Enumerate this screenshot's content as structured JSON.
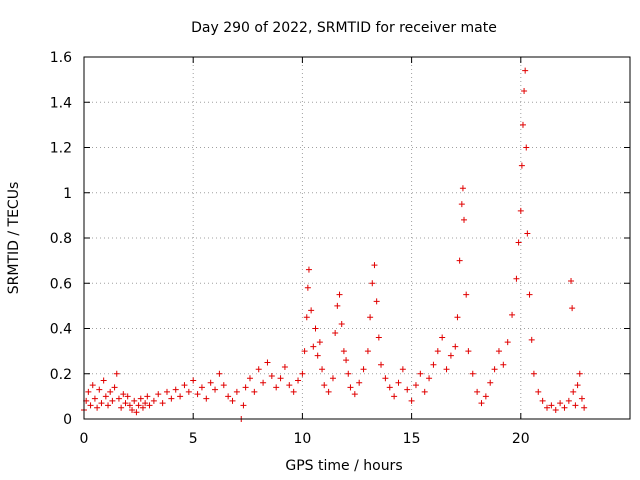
{
  "chart_data": {
    "type": "scatter",
    "title": "Day 290 of 2022, SRMTID for receiver mate",
    "xlabel": "GPS time / hours",
    "ylabel": "SRMTID / TECUs",
    "xlim": [
      0,
      25
    ],
    "ylim": [
      0,
      1.6
    ],
    "x_ticks": [
      0,
      5,
      10,
      15,
      20
    ],
    "x_tick_labels": [
      "0",
      "5",
      "10",
      "15",
      "20"
    ],
    "y_ticks": [
      0,
      0.2,
      0.4,
      0.6,
      0.8,
      1,
      1.2,
      1.4,
      1.6
    ],
    "y_tick_labels": [
      "0",
      "0.2",
      "0.4",
      "0.6",
      "0.8",
      "1",
      "1.2",
      "1.4",
      "1.6"
    ],
    "grid": true,
    "marker": "+",
    "color": "#e00000",
    "series": [
      {
        "name": "SRMTID",
        "points": [
          [
            0.0,
            0.04
          ],
          [
            0.1,
            0.08
          ],
          [
            0.2,
            0.12
          ],
          [
            0.3,
            0.06
          ],
          [
            0.4,
            0.15
          ],
          [
            0.5,
            0.09
          ],
          [
            0.6,
            0.05
          ],
          [
            0.7,
            0.13
          ],
          [
            0.8,
            0.07
          ],
          [
            0.9,
            0.17
          ],
          [
            1.0,
            0.1
          ],
          [
            1.1,
            0.06
          ],
          [
            1.2,
            0.12
          ],
          [
            1.3,
            0.08
          ],
          [
            1.4,
            0.14
          ],
          [
            1.5,
            0.2
          ],
          [
            1.6,
            0.09
          ],
          [
            1.7,
            0.05
          ],
          [
            1.8,
            0.11
          ],
          [
            1.9,
            0.07
          ],
          [
            2.0,
            0.1
          ],
          [
            2.1,
            0.06
          ],
          [
            2.2,
            0.04
          ],
          [
            2.3,
            0.08
          ],
          [
            2.4,
            0.03
          ],
          [
            2.5,
            0.06
          ],
          [
            2.6,
            0.09
          ],
          [
            2.7,
            0.05
          ],
          [
            2.8,
            0.07
          ],
          [
            2.9,
            0.1
          ],
          [
            3.0,
            0.06
          ],
          [
            3.2,
            0.08
          ],
          [
            3.4,
            0.11
          ],
          [
            3.6,
            0.07
          ],
          [
            3.8,
            0.12
          ],
          [
            4.0,
            0.09
          ],
          [
            4.2,
            0.13
          ],
          [
            4.4,
            0.1
          ],
          [
            4.6,
            0.15
          ],
          [
            4.8,
            0.12
          ],
          [
            5.0,
            0.17
          ],
          [
            5.2,
            0.11
          ],
          [
            5.4,
            0.14
          ],
          [
            5.6,
            0.09
          ],
          [
            5.8,
            0.16
          ],
          [
            6.0,
            0.13
          ],
          [
            6.2,
            0.2
          ],
          [
            6.4,
            0.15
          ],
          [
            6.6,
            0.1
          ],
          [
            6.8,
            0.08
          ],
          [
            7.0,
            0.12
          ],
          [
            7.2,
            0.0
          ],
          [
            7.3,
            0.06
          ],
          [
            7.4,
            0.14
          ],
          [
            7.6,
            0.18
          ],
          [
            7.8,
            0.12
          ],
          [
            8.0,
            0.22
          ],
          [
            8.2,
            0.16
          ],
          [
            8.4,
            0.25
          ],
          [
            8.6,
            0.19
          ],
          [
            8.8,
            0.14
          ],
          [
            9.0,
            0.18
          ],
          [
            9.2,
            0.23
          ],
          [
            9.4,
            0.15
          ],
          [
            9.6,
            0.12
          ],
          [
            9.8,
            0.17
          ],
          [
            10.0,
            0.2
          ],
          [
            10.1,
            0.3
          ],
          [
            10.2,
            0.45
          ],
          [
            10.25,
            0.58
          ],
          [
            10.3,
            0.66
          ],
          [
            10.4,
            0.48
          ],
          [
            10.5,
            0.32
          ],
          [
            10.6,
            0.4
          ],
          [
            10.7,
            0.28
          ],
          [
            10.8,
            0.34
          ],
          [
            10.9,
            0.22
          ],
          [
            11.0,
            0.15
          ],
          [
            11.2,
            0.12
          ],
          [
            11.4,
            0.18
          ],
          [
            11.5,
            0.38
          ],
          [
            11.6,
            0.5
          ],
          [
            11.7,
            0.55
          ],
          [
            11.8,
            0.42
          ],
          [
            11.9,
            0.3
          ],
          [
            12.0,
            0.26
          ],
          [
            12.1,
            0.2
          ],
          [
            12.2,
            0.14
          ],
          [
            12.4,
            0.11
          ],
          [
            12.6,
            0.16
          ],
          [
            12.8,
            0.22
          ],
          [
            13.0,
            0.3
          ],
          [
            13.1,
            0.45
          ],
          [
            13.2,
            0.6
          ],
          [
            13.3,
            0.68
          ],
          [
            13.4,
            0.52
          ],
          [
            13.5,
            0.36
          ],
          [
            13.6,
            0.24
          ],
          [
            13.8,
            0.18
          ],
          [
            14.0,
            0.14
          ],
          [
            14.2,
            0.1
          ],
          [
            14.4,
            0.16
          ],
          [
            14.6,
            0.22
          ],
          [
            14.8,
            0.13
          ],
          [
            15.0,
            0.08
          ],
          [
            15.2,
            0.15
          ],
          [
            15.4,
            0.2
          ],
          [
            15.6,
            0.12
          ],
          [
            15.8,
            0.18
          ],
          [
            16.0,
            0.24
          ],
          [
            16.2,
            0.3
          ],
          [
            16.4,
            0.36
          ],
          [
            16.6,
            0.22
          ],
          [
            16.8,
            0.28
          ],
          [
            17.0,
            0.32
          ],
          [
            17.1,
            0.45
          ],
          [
            17.2,
            0.7
          ],
          [
            17.3,
            0.95
          ],
          [
            17.35,
            1.02
          ],
          [
            17.4,
            0.88
          ],
          [
            17.5,
            0.55
          ],
          [
            17.6,
            0.3
          ],
          [
            17.8,
            0.2
          ],
          [
            18.0,
            0.12
          ],
          [
            18.2,
            0.07
          ],
          [
            18.4,
            0.1
          ],
          [
            18.6,
            0.16
          ],
          [
            18.8,
            0.22
          ],
          [
            19.0,
            0.3
          ],
          [
            19.2,
            0.24
          ],
          [
            19.4,
            0.34
          ],
          [
            19.6,
            0.46
          ],
          [
            19.8,
            0.62
          ],
          [
            19.9,
            0.78
          ],
          [
            20.0,
            0.92
          ],
          [
            20.05,
            1.12
          ],
          [
            20.1,
            1.3
          ],
          [
            20.15,
            1.45
          ],
          [
            20.2,
            1.54
          ],
          [
            20.25,
            1.2
          ],
          [
            20.3,
            0.82
          ],
          [
            20.4,
            0.55
          ],
          [
            20.5,
            0.35
          ],
          [
            20.6,
            0.2
          ],
          [
            20.8,
            0.12
          ],
          [
            21.0,
            0.08
          ],
          [
            21.2,
            0.05
          ],
          [
            21.4,
            0.06
          ],
          [
            21.6,
            0.04
          ],
          [
            21.8,
            0.07
          ],
          [
            22.0,
            0.05
          ],
          [
            22.2,
            0.08
          ],
          [
            22.3,
            0.61
          ],
          [
            22.35,
            0.49
          ],
          [
            22.4,
            0.12
          ],
          [
            22.5,
            0.06
          ],
          [
            22.6,
            0.15
          ],
          [
            22.7,
            0.2
          ],
          [
            22.8,
            0.09
          ],
          [
            22.9,
            0.05
          ]
        ]
      }
    ]
  }
}
